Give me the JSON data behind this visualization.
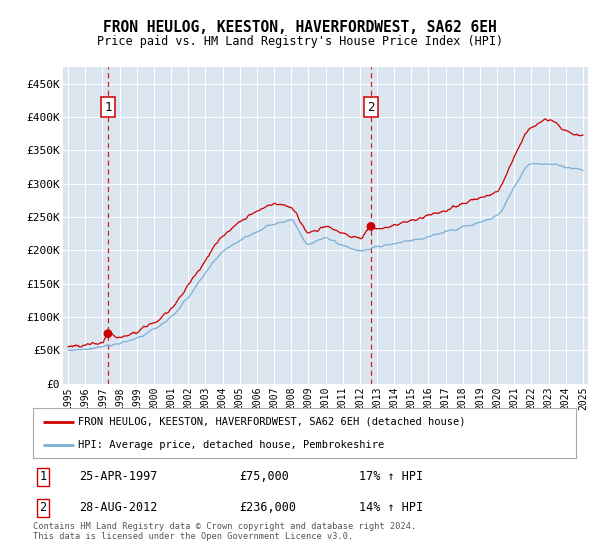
{
  "title": "FRON HEULOG, KEESTON, HAVERFORDWEST, SA62 6EH",
  "subtitle": "Price paid vs. HM Land Registry's House Price Index (HPI)",
  "line1_label": "FRON HEULOG, KEESTON, HAVERFORDWEST, SA62 6EH (detached house)",
  "line2_label": "HPI: Average price, detached house, Pembrokeshire",
  "line1_color": "#cc0000",
  "line2_color": "#7aafd4",
  "plot_bg_color": "#dce6f1",
  "marker1_date": 1997.32,
  "marker1_value": 75000,
  "marker2_date": 2012.65,
  "marker2_value": 236000,
  "vline1_date": 1997.32,
  "vline2_date": 2012.65,
  "footnote": "Contains HM Land Registry data © Crown copyright and database right 2024.\nThis data is licensed under the Open Government Licence v3.0.",
  "table_row1": [
    "1",
    "25-APR-1997",
    "£75,000",
    "17% ↑ HPI"
  ],
  "table_row2": [
    "2",
    "28-AUG-2012",
    "£236,000",
    "14% ↑ HPI"
  ],
  "ylim": [
    0,
    475000
  ],
  "xlim_start": 1994.7,
  "xlim_end": 2025.3,
  "ytick_values": [
    0,
    50000,
    100000,
    150000,
    200000,
    250000,
    300000,
    350000,
    400000,
    450000
  ],
  "ytick_labels": [
    "£0",
    "£50K",
    "£100K",
    "£150K",
    "£200K",
    "£250K",
    "£300K",
    "£350K",
    "£400K",
    "£450K"
  ],
  "xtick_years": [
    1995,
    1996,
    1997,
    1998,
    1999,
    2000,
    2001,
    2002,
    2003,
    2004,
    2005,
    2006,
    2007,
    2008,
    2009,
    2010,
    2011,
    2012,
    2013,
    2014,
    2015,
    2016,
    2017,
    2018,
    2019,
    2020,
    2021,
    2022,
    2023,
    2024,
    2025
  ]
}
